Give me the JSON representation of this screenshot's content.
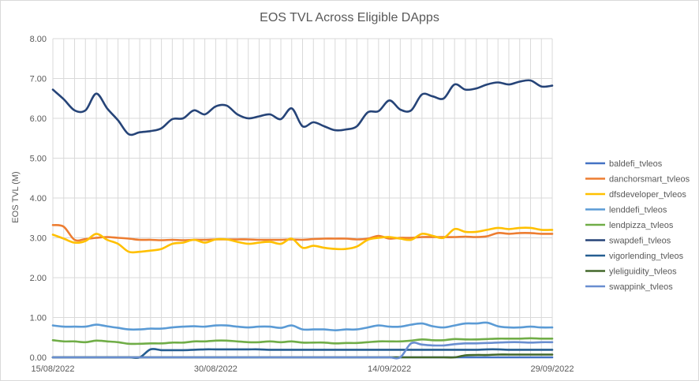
{
  "chart_data": {
    "type": "line",
    "title": "EOS TVL Across Eligible DApps",
    "xlabel": "",
    "ylabel": "EOS TVL (M)",
    "ylim": [
      0,
      8
    ],
    "y_ticks": [
      "0.00",
      "1.00",
      "2.00",
      "3.00",
      "4.00",
      "5.00",
      "6.00",
      "7.00",
      "8.00"
    ],
    "x_tick_labels": [
      "15/08/2022",
      "30/08/2022",
      "14/09/2022",
      "29/09/2022"
    ],
    "x_range": [
      "2022-08-15",
      "2022-09-30"
    ],
    "grid": true,
    "legend_position": "right",
    "series": [
      {
        "name": "baldefi_tvleos",
        "color": "#4472c4",
        "values": [
          0,
          0,
          0,
          0,
          0,
          0,
          0,
          0,
          0,
          0,
          0,
          0,
          0,
          0,
          0,
          0,
          0,
          0,
          0,
          0,
          0,
          0,
          0,
          0,
          0,
          0,
          0,
          0,
          0,
          0,
          0,
          0,
          0,
          0,
          0,
          0,
          0,
          0,
          0,
          0,
          0,
          0,
          0,
          0,
          0,
          0,
          0
        ]
      },
      {
        "name": "danchorsmart_tvleos",
        "color": "#ed7d31",
        "values": [
          3.32,
          3.28,
          2.95,
          2.97,
          3.0,
          3.02,
          3.0,
          2.98,
          2.95,
          2.95,
          2.94,
          2.95,
          2.94,
          2.95,
          2.95,
          2.96,
          2.96,
          2.96,
          2.96,
          2.95,
          2.95,
          2.95,
          2.96,
          2.95,
          2.97,
          2.98,
          2.98,
          2.98,
          2.96,
          2.98,
          3.05,
          2.98,
          3.0,
          3.0,
          3.02,
          3.02,
          3.02,
          3.02,
          3.03,
          3.02,
          3.04,
          3.12,
          3.1,
          3.12,
          3.12,
          3.1,
          3.1
        ]
      },
      {
        "name": "dfsdeveloper_tvleos",
        "color": "#ffc000",
        "values": [
          3.08,
          2.98,
          2.88,
          2.92,
          3.1,
          2.95,
          2.85,
          2.65,
          2.65,
          2.68,
          2.72,
          2.85,
          2.88,
          2.95,
          2.88,
          2.96,
          2.96,
          2.9,
          2.85,
          2.88,
          2.9,
          2.85,
          2.98,
          2.75,
          2.8,
          2.75,
          2.72,
          2.72,
          2.78,
          2.95,
          3.0,
          3.02,
          2.98,
          2.95,
          3.1,
          3.05,
          3.0,
          3.22,
          3.15,
          3.15,
          3.2,
          3.25,
          3.22,
          3.25,
          3.25,
          3.2,
          3.2
        ]
      },
      {
        "name": "lenddefi_tvleos",
        "color": "#5b9bd5",
        "values": [
          0.8,
          0.77,
          0.77,
          0.77,
          0.82,
          0.78,
          0.74,
          0.7,
          0.7,
          0.72,
          0.72,
          0.75,
          0.77,
          0.78,
          0.77,
          0.8,
          0.8,
          0.77,
          0.75,
          0.77,
          0.77,
          0.74,
          0.8,
          0.7,
          0.7,
          0.7,
          0.68,
          0.7,
          0.7,
          0.75,
          0.8,
          0.77,
          0.77,
          0.82,
          0.85,
          0.78,
          0.75,
          0.8,
          0.85,
          0.85,
          0.87,
          0.78,
          0.75,
          0.75,
          0.77,
          0.75,
          0.75
        ]
      },
      {
        "name": "lendpizza_tvleos",
        "color": "#70ad47",
        "values": [
          0.43,
          0.4,
          0.4,
          0.38,
          0.42,
          0.4,
          0.38,
          0.34,
          0.34,
          0.35,
          0.35,
          0.37,
          0.37,
          0.4,
          0.4,
          0.42,
          0.42,
          0.4,
          0.38,
          0.38,
          0.4,
          0.38,
          0.4,
          0.37,
          0.37,
          0.37,
          0.35,
          0.36,
          0.36,
          0.38,
          0.4,
          0.4,
          0.4,
          0.42,
          0.45,
          0.43,
          0.43,
          0.46,
          0.45,
          0.45,
          0.46,
          0.47,
          0.47,
          0.47,
          0.48,
          0.47,
          0.47
        ]
      },
      {
        "name": "swapdefi_tvleos",
        "color": "#264478",
        "values": [
          6.72,
          6.48,
          6.2,
          6.2,
          6.62,
          6.25,
          5.95,
          5.6,
          5.65,
          5.68,
          5.75,
          5.98,
          6.0,
          6.2,
          6.1,
          6.3,
          6.32,
          6.1,
          6.0,
          6.05,
          6.1,
          5.98,
          6.25,
          5.8,
          5.9,
          5.8,
          5.7,
          5.72,
          5.8,
          6.15,
          6.18,
          6.45,
          6.22,
          6.2,
          6.6,
          6.55,
          6.5,
          6.85,
          6.72,
          6.75,
          6.85,
          6.9,
          6.85,
          6.92,
          6.95,
          6.8,
          6.82
        ]
      },
      {
        "name": "vigorlending_tvleos",
        "color": "#255e91",
        "values": [
          0,
          0,
          0,
          0,
          0,
          0,
          0,
          0,
          0,
          0.2,
          0.18,
          0.18,
          0.18,
          0.19,
          0.2,
          0.2,
          0.2,
          0.2,
          0.2,
          0.2,
          0.19,
          0.19,
          0.19,
          0.19,
          0.19,
          0.19,
          0.19,
          0.19,
          0.19,
          0.19,
          0.19,
          0.19,
          0.19,
          0.19,
          0.19,
          0.19,
          0.19,
          0.19,
          0.19,
          0.19,
          0.2,
          0.2,
          0.19,
          0.19,
          0.19,
          0.19,
          0.19
        ]
      },
      {
        "name": "yleliguidity_tvleos",
        "color": "#43682b",
        "values": [
          0,
          0,
          0,
          0,
          0,
          0,
          0,
          0,
          0,
          0,
          0,
          0,
          0,
          0,
          0,
          0,
          0,
          0,
          0,
          0,
          0,
          0,
          0,
          0,
          0,
          0,
          0,
          0,
          0,
          0,
          0,
          0,
          0,
          0,
          0,
          0,
          0,
          0,
          0.05,
          0.06,
          0.06,
          0.07,
          0.07,
          0.07,
          0.07,
          0.07,
          0.07
        ]
      },
      {
        "name": "swappink_tvleos",
        "color": "#698ed0",
        "values": [
          0,
          0,
          0,
          0,
          0,
          0,
          0,
          0,
          0,
          0,
          0,
          0,
          0,
          0,
          0,
          0,
          0,
          0,
          0,
          0,
          0,
          0,
          0,
          0,
          0,
          0,
          0,
          0,
          0,
          0,
          0,
          0,
          0,
          0.35,
          0.32,
          0.3,
          0.3,
          0.33,
          0.35,
          0.35,
          0.36,
          0.37,
          0.38,
          0.38,
          0.37,
          0.38,
          0.38
        ]
      }
    ]
  }
}
